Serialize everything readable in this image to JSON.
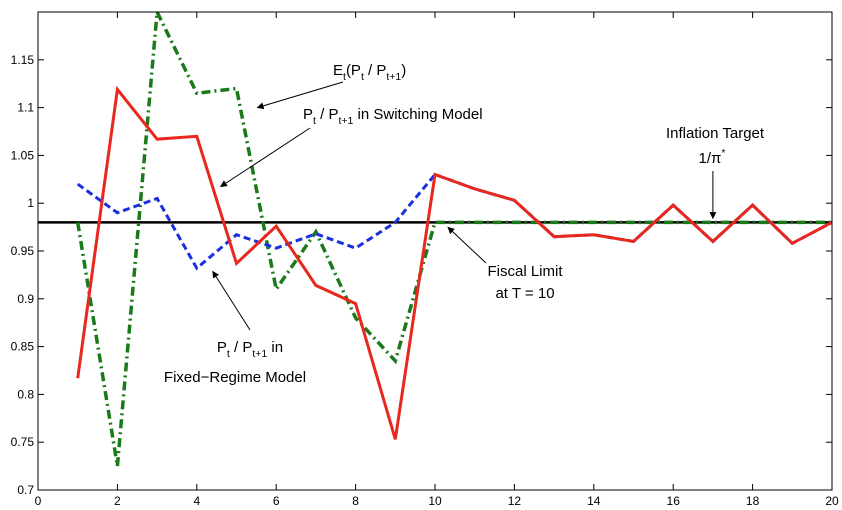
{
  "chart_data": {
    "type": "line",
    "title": "",
    "xlabel": "",
    "ylabel": "",
    "xlim": [
      0,
      20
    ],
    "ylim": [
      0.7,
      1.2
    ],
    "x_ticks": [
      0,
      2,
      4,
      6,
      8,
      10,
      12,
      14,
      16,
      18,
      20
    ],
    "y_ticks": [
      0.7,
      0.75,
      0.8,
      0.85,
      0.9,
      0.95,
      1,
      1.05,
      1.1,
      1.15
    ],
    "grid": false,
    "x": [
      1,
      2,
      3,
      4,
      5,
      6,
      7,
      8,
      9,
      10,
      11,
      12,
      13,
      14,
      15,
      16,
      17,
      18,
      19,
      20
    ],
    "series": [
      {
        "name": "Et(Pt / Pt+1)",
        "color": "#1a7a1a",
        "style": "dash-dot",
        "values": [
          0.98,
          0.725,
          1.2,
          1.115,
          1.12,
          0.91,
          0.97,
          0.88,
          0.835,
          0.98,
          0.98,
          0.98,
          0.98,
          0.98,
          0.98,
          0.98,
          0.98,
          0.98,
          0.98,
          0.98
        ]
      },
      {
        "name": "Pt / Pt+1 in Fixed-Regime Model",
        "color": "#1a2fe0",
        "style": "dashed",
        "values": [
          1.02,
          0.99,
          1.005,
          0.932,
          0.967,
          0.953,
          0.968,
          0.953,
          0.98,
          1.03,
          1.015,
          1.003,
          0.965,
          0.967,
          0.96,
          0.998,
          0.96,
          0.998,
          0.958,
          0.98
        ]
      },
      {
        "name": "Pt / Pt+1 in Switching Model",
        "color": "#e8281e",
        "style": "solid",
        "values": [
          0.817,
          1.119,
          1.067,
          1.07,
          0.937,
          0.976,
          0.914,
          0.895,
          0.753,
          1.03,
          1.015,
          1.003,
          0.965,
          0.967,
          0.96,
          0.998,
          0.96,
          0.998,
          0.958,
          0.98
        ]
      },
      {
        "name": "Inflation Target 1/π*",
        "color": "#000000",
        "style": "solid",
        "values": [
          0.98,
          0.98,
          0.98,
          0.98,
          0.98,
          0.98,
          0.98,
          0.98,
          0.98,
          0.98,
          0.98,
          0.98,
          0.98,
          0.98,
          0.98,
          0.98,
          0.98,
          0.98,
          0.98,
          0.98
        ]
      }
    ],
    "annotations": [
      {
        "id": "expectation",
        "parts": [
          {
            "text": "E",
            "sub": false
          },
          {
            "text": "t",
            "sub": true
          },
          {
            "text": "(P",
            "sub": false
          },
          {
            "text": "t",
            "sub": true
          },
          {
            "text": " / P",
            "sub": false
          },
          {
            "text": "t+1",
            "sub": true
          },
          {
            "text": ")",
            "sub": false
          }
        ],
        "arrow_to": [
          5.6,
          1.1
        ]
      },
      {
        "id": "switching",
        "parts": [
          {
            "text": "P",
            "sub": false
          },
          {
            "text": "t",
            "sub": true
          },
          {
            "text": " / P",
            "sub": false
          },
          {
            "text": "t+1",
            "sub": true
          },
          {
            "text": " in Switching Model",
            "sub": false
          }
        ],
        "arrow_to": [
          4.7,
          1.01
        ]
      },
      {
        "id": "inflation-target",
        "line1": "Inflation Target",
        "line2": "1/π",
        "line2_sup": "*",
        "arrow_to": [
          17,
          0.982
        ]
      },
      {
        "id": "fiscal-limit",
        "line1": "Fiscal Limit",
        "line2": "at T = 10",
        "arrow_to": [
          10.25,
          0.978
        ]
      },
      {
        "id": "fixed-regime",
        "line1_parts": [
          {
            "text": "P",
            "sub": false
          },
          {
            "text": "t",
            "sub": true
          },
          {
            "text": " / P",
            "sub": false
          },
          {
            "text": "t+1",
            "sub": true
          },
          {
            "text": " in",
            "sub": false
          }
        ],
        "line2": "Fixed−Regime Model",
        "arrow_to": [
          4.3,
          0.935
        ]
      }
    ]
  }
}
